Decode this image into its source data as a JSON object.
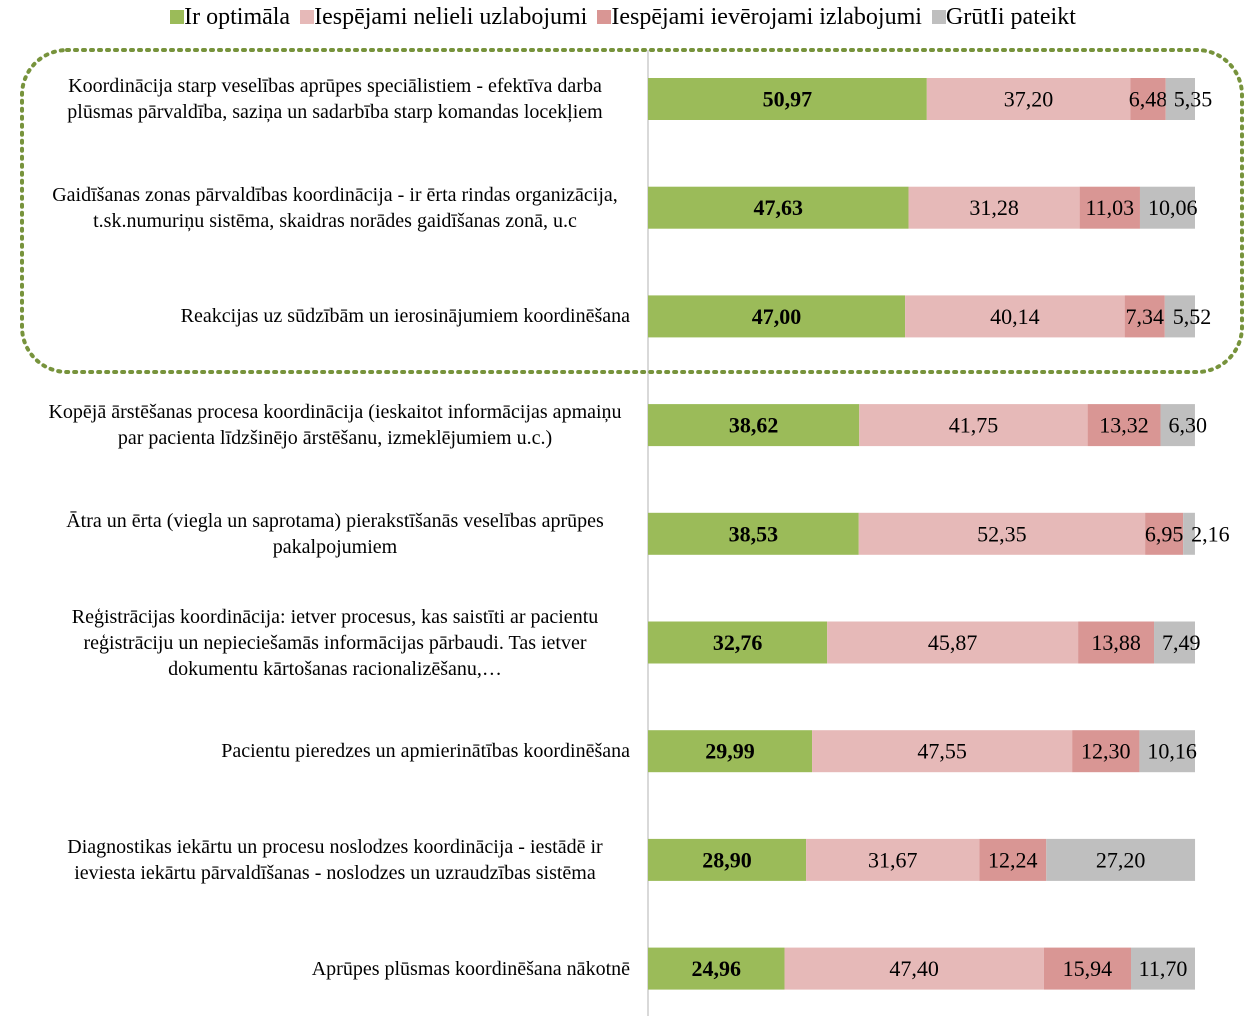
{
  "chart_data": {
    "type": "stacked_barh",
    "categories": [
      "Koordinācija starp veselības aprūpes speciālistiem - efektīva darba plūsmas pārvaldība, saziņa un sadarbība starp komandas locekļiem",
      "Gaidīšanas zonas pārvaldības koordinācija - ir ērta rindas organizācija, t.sk.numuriņu sistēma, skaidras norādes gaidīšanas zonā, u.c",
      "Reakcijas uz sūdzībām un ierosinājumiem koordinēšana",
      "Kopējā ārstēšanas procesa koordinācija (ieskaitot informācijas apmaiņu par pacienta līdzšinējo ārstēšanu, izmeklējumiem u.c.)",
      "Ātra un ērta (viegla un saprotama) pierakstīšanās veselības aprūpes pakalpojumiem",
      "Reģistrācijas koordinācija: ietver procesus, kas saistīti ar pacientu reģistrāciju un nepieciešamās informācijas pārbaudi. Tas ietver dokumentu kārtošanas racionalizēšanu,…",
      "Pacientu pieredzes un apmierinātības koordinēšana",
      "Diagnostikas iekārtu un procesu noslodzes koordinācija - iestādē ir ieviesta iekārtu pārvaldīšanas - noslodzes un uzraudzības sistēma",
      "Aprūpes plūsmas koordinēšana nākotnē"
    ],
    "xlim": [
      0,
      100
    ],
    "series": [
      {
        "name": "Ir optimāla",
        "color": "#9bbb59",
        "values": [
          50.97,
          47.63,
          47.0,
          38.62,
          38.53,
          32.76,
          29.99,
          28.9,
          24.96
        ],
        "value_labels": [
          "50,97",
          "47,63",
          "47,00",
          "38,62",
          "38,53",
          "32,76",
          "29,99",
          "28,90",
          "24,96"
        ]
      },
      {
        "name": "Iespējami nelieli uzlabojumi",
        "color": "#e6b9b8",
        "values": [
          37.2,
          31.28,
          40.14,
          41.75,
          52.35,
          45.87,
          47.55,
          31.67,
          47.4
        ],
        "value_labels": [
          "37,20",
          "31,28",
          "40,14",
          "41,75",
          "52,35",
          "45,87",
          "47,55",
          "31,67",
          "47,40"
        ]
      },
      {
        "name": "Iespējami ievērojami izlabojumi",
        "color": "#d99694",
        "values": [
          6.48,
          11.03,
          7.34,
          13.32,
          6.95,
          13.88,
          12.3,
          12.24,
          15.94
        ],
        "value_labels": [
          "6,48",
          "11,03",
          "7,34",
          "13,32",
          "6,95",
          "13,88",
          "12,30",
          "12,24",
          "15,94"
        ]
      },
      {
        "name": "GrūtIi pateikt",
        "color": "#bfbfbf",
        "values": [
          5.35,
          10.06,
          5.52,
          6.3,
          2.16,
          7.49,
          10.16,
          27.2,
          11.7
        ],
        "value_labels": [
          "5,35",
          "10,06",
          "5,52",
          "6,30",
          "2,16",
          "7,49",
          "10,16",
          "27,20",
          "11,70"
        ]
      }
    ]
  }
}
